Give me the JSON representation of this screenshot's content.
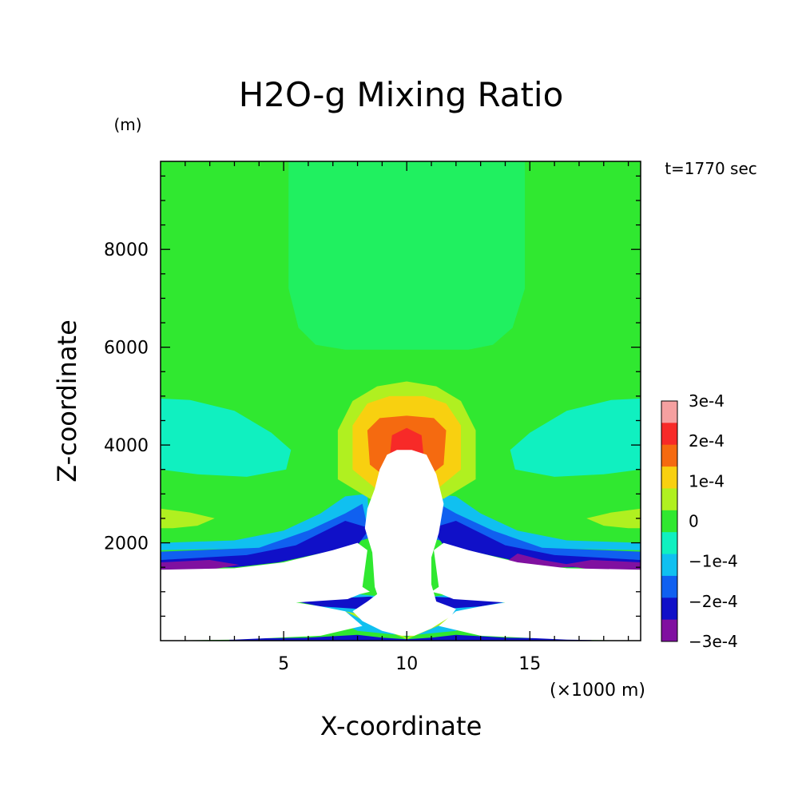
{
  "chart_data": {
    "type": "heatmap",
    "title": "H2O-g Mixing Ratio",
    "time_label": "t=1770 sec",
    "xlabel": "X-coordinate",
    "ylabel": "Z-coordinate",
    "x_unit": "(×1000 m)",
    "y_unit": "(m)",
    "xlim": [
      0,
      19.5
    ],
    "ylim": [
      0,
      9800
    ],
    "x_ticks": [
      5,
      10,
      15
    ],
    "x_tick_labels": [
      "5",
      "10",
      "15"
    ],
    "y_ticks": [
      2000,
      4000,
      6000,
      8000
    ],
    "y_tick_labels": [
      "2000",
      "4000",
      "6000",
      "8000"
    ],
    "colorbar": {
      "labels": [
        "3e-4",
        "2e-4",
        "1e-4",
        "0",
        "−1e-4",
        "−2e-4",
        "−3e-4"
      ],
      "bands_top_to_bottom": [
        "#f5a0a0",
        "#f72a28",
        "#f56a10",
        "#f8d010",
        "#b0f020",
        "#30e830",
        "#10f0c0",
        "#10c0f0",
        "#1060f0",
        "#1010c8",
        "#8010a0"
      ]
    },
    "regions": [
      {
        "level": "0",
        "color": "#30e830",
        "points": [
          [
            0,
            0
          ],
          [
            19.5,
            0
          ],
          [
            19.5,
            9800
          ],
          [
            0,
            9800
          ]
        ]
      },
      {
        "level": "−0.5e-4",
        "color": "#20f060",
        "points": [
          [
            5.2,
            9800
          ],
          [
            5.2,
            7200
          ],
          [
            5.6,
            6400
          ],
          [
            6.3,
            6050
          ],
          [
            7.5,
            5950
          ],
          [
            12.5,
            5950
          ],
          [
            13.5,
            6050
          ],
          [
            14.3,
            6400
          ],
          [
            14.8,
            7200
          ],
          [
            14.8,
            9800
          ]
        ]
      },
      {
        "level": "−1e-4",
        "color": "#10f0c0",
        "points": [
          [
            0,
            4950
          ],
          [
            1.2,
            4920
          ],
          [
            3,
            4700
          ],
          [
            4.5,
            4250
          ],
          [
            5.3,
            3900
          ],
          [
            5.1,
            3500
          ],
          [
            3.5,
            3350
          ],
          [
            1.5,
            3400
          ],
          [
            0,
            3500
          ]
        ]
      },
      {
        "level": "−1e-4",
        "color": "#10f0c0",
        "points": [
          [
            19.5,
            4950
          ],
          [
            18.3,
            4920
          ],
          [
            16.5,
            4700
          ],
          [
            15,
            4250
          ],
          [
            14.2,
            3900
          ],
          [
            14.4,
            3500
          ],
          [
            16,
            3350
          ],
          [
            18,
            3400
          ],
          [
            19.5,
            3500
          ]
        ]
      },
      {
        "level": "0.5e-4",
        "color": "#b0f020",
        "points": [
          [
            0,
            2700
          ],
          [
            1.2,
            2620
          ],
          [
            2.2,
            2500
          ],
          [
            1.5,
            2350
          ],
          [
            0.5,
            2300
          ],
          [
            0,
            2300
          ]
        ]
      },
      {
        "level": "0.5e-4",
        "color": "#b0f020",
        "points": [
          [
            19.5,
            2700
          ],
          [
            18.3,
            2620
          ],
          [
            17.3,
            2500
          ],
          [
            18,
            2350
          ],
          [
            19,
            2300
          ],
          [
            19.5,
            2300
          ]
        ]
      },
      {
        "level": "−1.5e-4",
        "color": "#10c0f0",
        "points": [
          [
            0,
            2000
          ],
          [
            3,
            2050
          ],
          [
            5,
            2250
          ],
          [
            6.5,
            2600
          ],
          [
            7.5,
            2950
          ],
          [
            8.4,
            3000
          ],
          [
            8.5,
            2200
          ],
          [
            7.5,
            2000
          ],
          [
            5.5,
            1900
          ],
          [
            0,
            1850
          ]
        ]
      },
      {
        "level": "−1.5e-4",
        "color": "#10c0f0",
        "points": [
          [
            19.5,
            2000
          ],
          [
            16.5,
            2050
          ],
          [
            14.5,
            2250
          ],
          [
            13,
            2600
          ],
          [
            12,
            2950
          ],
          [
            11.1,
            3000
          ],
          [
            11,
            2200
          ],
          [
            12,
            2000
          ],
          [
            14,
            1900
          ],
          [
            19.5,
            1850
          ]
        ]
      },
      {
        "level": "−2e-4",
        "color": "#1060f0",
        "points": [
          [
            0,
            1820
          ],
          [
            4,
            1900
          ],
          [
            6,
            2250
          ],
          [
            7.5,
            2600
          ],
          [
            8.2,
            2800
          ],
          [
            8.5,
            2100
          ],
          [
            7.5,
            1950
          ],
          [
            5.5,
            1780
          ],
          [
            0,
            1650
          ]
        ]
      },
      {
        "level": "−2e-4",
        "color": "#1060f0",
        "points": [
          [
            19.5,
            1820
          ],
          [
            15.5,
            1900
          ],
          [
            13.5,
            2250
          ],
          [
            12,
            2600
          ],
          [
            11.3,
            2800
          ],
          [
            11,
            2100
          ],
          [
            12,
            1950
          ],
          [
            14,
            1780
          ],
          [
            19.5,
            1650
          ]
        ]
      },
      {
        "level": "−2.5e-4",
        "color": "#1010c8",
        "points": [
          [
            0,
            1650
          ],
          [
            3.5,
            1750
          ],
          [
            5.5,
            1950
          ],
          [
            7.5,
            2450
          ],
          [
            8.5,
            2300
          ],
          [
            8,
            1950
          ],
          [
            4.8,
            1600
          ],
          [
            3,
            1500
          ],
          [
            0,
            1500
          ]
        ]
      },
      {
        "level": "−2.5e-4",
        "color": "#1010c8",
        "points": [
          [
            19.5,
            1650
          ],
          [
            16,
            1750
          ],
          [
            14,
            1950
          ],
          [
            12,
            2450
          ],
          [
            11,
            2300
          ],
          [
            11.5,
            1950
          ],
          [
            14.7,
            1600
          ],
          [
            16.5,
            1500
          ],
          [
            19.5,
            1500
          ]
        ]
      },
      {
        "level": "−3e-4",
        "color": "#8010a0",
        "points": [
          [
            0,
            1600
          ],
          [
            2,
            1650
          ],
          [
            3.2,
            1550
          ],
          [
            2,
            1450
          ],
          [
            0,
            1450
          ]
        ]
      },
      {
        "level": "−3e-4",
        "color": "#8010a0",
        "points": [
          [
            19.5,
            1600
          ],
          [
            17.5,
            1650
          ],
          [
            16.3,
            1550
          ],
          [
            17.5,
            1450
          ],
          [
            19.5,
            1450
          ]
        ]
      },
      {
        "level": "−3e-4",
        "color": "#8010a0",
        "points": [
          [
            14.5,
            1780
          ],
          [
            15.5,
            1650
          ],
          [
            17,
            1520
          ],
          [
            15.8,
            1480
          ],
          [
            14,
            1600
          ]
        ]
      },
      {
        "level": "0.5e-4",
        "color": "#b0f020",
        "points": [
          [
            7.2,
            3300
          ],
          [
            7.2,
            4300
          ],
          [
            7.8,
            4900
          ],
          [
            8.8,
            5200
          ],
          [
            10,
            5300
          ],
          [
            11.2,
            5200
          ],
          [
            12.2,
            4900
          ],
          [
            12.8,
            4300
          ],
          [
            12.8,
            3300
          ],
          [
            11.5,
            2900
          ],
          [
            8.5,
            2900
          ]
        ]
      },
      {
        "level": "1e-4",
        "color": "#f8d010",
        "points": [
          [
            7.8,
            3500
          ],
          [
            7.8,
            4400
          ],
          [
            8.4,
            4850
          ],
          [
            9.3,
            5000
          ],
          [
            10.7,
            5000
          ],
          [
            11.6,
            4850
          ],
          [
            12.2,
            4400
          ],
          [
            12.2,
            3500
          ],
          [
            11,
            3000
          ],
          [
            9,
            3000
          ]
        ]
      },
      {
        "level": "1.5e-4",
        "color": "#f56a10",
        "points": [
          [
            8.5,
            3600
          ],
          [
            8.4,
            4300
          ],
          [
            8.9,
            4550
          ],
          [
            10,
            4600
          ],
          [
            11.1,
            4550
          ],
          [
            11.6,
            4300
          ],
          [
            11.5,
            3600
          ],
          [
            10.5,
            3200
          ],
          [
            9.5,
            3200
          ]
        ]
      },
      {
        "level": "2e-4",
        "color": "#f72a28",
        "points": [
          [
            9.3,
            3700
          ],
          [
            9.4,
            4200
          ],
          [
            10,
            4350
          ],
          [
            10.6,
            4200
          ],
          [
            10.7,
            3700
          ],
          [
            10,
            3450
          ]
        ]
      },
      {
        "level": "−1.5e-4",
        "color": "#10c0f0",
        "points": [
          [
            6,
            800
          ],
          [
            7,
            850
          ],
          [
            8,
            950
          ],
          [
            9,
            900
          ],
          [
            10,
            800
          ],
          [
            11,
            900
          ],
          [
            12,
            950
          ],
          [
            13,
            850
          ],
          [
            14,
            800
          ],
          [
            12.8,
            400
          ],
          [
            12,
            200
          ],
          [
            10,
            100
          ],
          [
            8,
            200
          ],
          [
            7.2,
            400
          ]
        ]
      },
      {
        "level": "−2.5e-4",
        "color": "#1010c8",
        "points": [
          [
            5.3,
            820
          ],
          [
            7,
            860
          ],
          [
            8.5,
            900
          ],
          [
            9,
            850
          ],
          [
            8,
            650
          ],
          [
            6.5,
            700
          ]
        ]
      },
      {
        "level": "−2.5e-4",
        "color": "#1010c8",
        "points": [
          [
            14.3,
            820
          ],
          [
            12.5,
            860
          ],
          [
            11,
            900
          ],
          [
            10.5,
            850
          ],
          [
            11.5,
            650
          ],
          [
            13,
            700
          ]
        ]
      },
      {
        "level": "0.5e-4",
        "color": "#b0f020",
        "points": [
          [
            7.5,
            600
          ],
          [
            8.5,
            500
          ],
          [
            9.5,
            200
          ],
          [
            10,
            60
          ],
          [
            10.5,
            200
          ],
          [
            11.5,
            500
          ],
          [
            12.5,
            600
          ],
          [
            11.5,
            350
          ],
          [
            10,
            30
          ],
          [
            8.5,
            350
          ]
        ]
      },
      {
        "level": "−2.5e-4",
        "color": "#1010c8",
        "points": [
          [
            2.8,
            40
          ],
          [
            6,
            60
          ],
          [
            8,
            120
          ],
          [
            9,
            60
          ],
          [
            10,
            30
          ],
          [
            11,
            60
          ],
          [
            12,
            120
          ],
          [
            14,
            60
          ],
          [
            17.5,
            40
          ],
          [
            17.5,
            0
          ],
          [
            2.8,
            0
          ]
        ]
      },
      {
        "level": "dry",
        "color": "#ffffff",
        "points": [
          [
            0,
            1450
          ],
          [
            3,
            1480
          ],
          [
            5,
            1600
          ],
          [
            7,
            1850
          ],
          [
            8,
            2000
          ],
          [
            8.4,
            1850
          ],
          [
            8.2,
            1100
          ],
          [
            8.5,
            1000
          ],
          [
            8.1,
            950
          ],
          [
            7.6,
            850
          ],
          [
            5.5,
            780
          ],
          [
            6.5,
            700
          ],
          [
            7.5,
            600
          ],
          [
            8.2,
            300
          ],
          [
            6.5,
            100
          ],
          [
            3,
            20
          ],
          [
            0,
            0
          ]
        ]
      },
      {
        "level": "dry",
        "color": "#ffffff",
        "points": [
          [
            19.5,
            1450
          ],
          [
            16.5,
            1480
          ],
          [
            14.5,
            1600
          ],
          [
            12.5,
            1850
          ],
          [
            11.5,
            2000
          ],
          [
            11.1,
            1850
          ],
          [
            11.3,
            1100
          ],
          [
            11,
            1000
          ],
          [
            11.4,
            950
          ],
          [
            11.9,
            850
          ],
          [
            14,
            780
          ],
          [
            13,
            700
          ],
          [
            12,
            600
          ],
          [
            11.3,
            300
          ],
          [
            13,
            100
          ],
          [
            16.5,
            20
          ],
          [
            19.5,
            0
          ]
        ]
      },
      {
        "level": "dry",
        "color": "#ffffff",
        "points": [
          [
            8.7,
            1100
          ],
          [
            8.6,
            1800
          ],
          [
            8.3,
            2300
          ],
          [
            8.4,
            2700
          ],
          [
            8.7,
            3100
          ],
          [
            8.9,
            3500
          ],
          [
            9.2,
            3800
          ],
          [
            9.6,
            3900
          ],
          [
            10.2,
            3900
          ],
          [
            10.8,
            3800
          ],
          [
            11.2,
            3400
          ],
          [
            11.5,
            2800
          ],
          [
            11.3,
            2200
          ],
          [
            11,
            1700
          ],
          [
            11,
            1150
          ],
          [
            11.2,
            800
          ],
          [
            12,
            650
          ],
          [
            11.8,
            500
          ],
          [
            11,
            250
          ],
          [
            10.3,
            100
          ],
          [
            9.8,
            100
          ],
          [
            9,
            200
          ],
          [
            8.2,
            400
          ],
          [
            7.8,
            600
          ],
          [
            8.4,
            800
          ],
          [
            8.8,
            950
          ]
        ]
      }
    ]
  }
}
